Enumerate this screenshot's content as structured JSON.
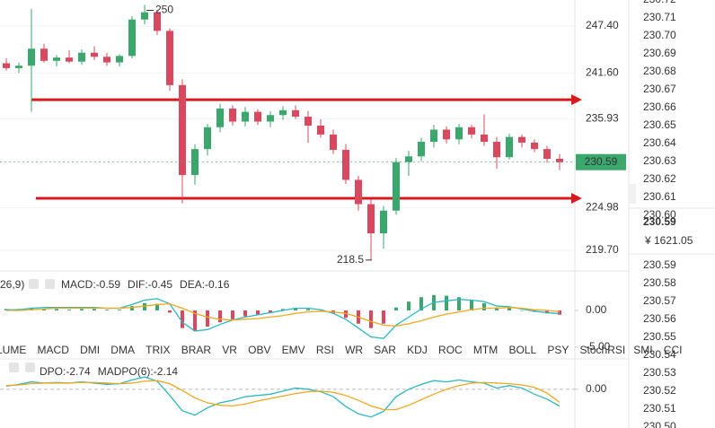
{
  "chart_data": [
    {
      "type": "candlestick",
      "open": [
        242.8,
        242.2,
        242.5,
        244.6,
        243.1,
        243.5,
        243.0,
        244.1,
        243.6,
        242.9,
        243.7,
        248.2,
        249.1,
        246.8,
        240.1,
        229.0,
        232.2,
        234.9,
        237.2,
        235.6,
        236.8,
        235.6,
        236.4,
        237.0,
        236.2,
        235.1,
        234.0,
        232.1,
        228.4,
        225.4,
        221.8,
        224.6,
        230.6,
        231.3,
        233.1,
        234.6,
        233.4,
        234.9,
        234.0,
        233.1,
        231.2,
        233.7,
        233.0,
        232.2,
        231.0
      ],
      "high": [
        243.4,
        242.9,
        249.5,
        245.2,
        243.8,
        244.4,
        244.5,
        244.9,
        244.1,
        243.9,
        248.6,
        250.0,
        249.4,
        247.1,
        240.8,
        232.8,
        235.3,
        237.8,
        237.6,
        237.4,
        237.1,
        236.9,
        237.5,
        237.6,
        236.9,
        235.9,
        234.6,
        232.8,
        228.9,
        226.0,
        225.2,
        231.1,
        232.0,
        233.6,
        235.2,
        235.0,
        235.3,
        235.2,
        236.5,
        233.7,
        234.1,
        234.0,
        233.4,
        232.6,
        231.6
      ],
      "low": [
        241.9,
        241.6,
        236.8,
        242.9,
        242.4,
        242.8,
        242.6,
        243.2,
        242.5,
        242.4,
        243.4,
        247.6,
        246.3,
        239.4,
        225.5,
        227.8,
        231.4,
        234.3,
        235.1,
        235.0,
        235.2,
        234.9,
        235.8,
        235.9,
        233.0,
        233.6,
        231.6,
        227.9,
        224.6,
        218.5,
        219.9,
        224.1,
        228.9,
        230.7,
        232.4,
        232.9,
        232.8,
        233.5,
        232.6,
        229.8,
        230.9,
        232.4,
        231.8,
        230.5,
        229.6
      ],
      "close": [
        242.2,
        242.5,
        244.6,
        243.1,
        243.5,
        243.0,
        244.1,
        243.6,
        242.9,
        243.7,
        248.2,
        249.1,
        246.8,
        240.1,
        229.0,
        232.2,
        234.9,
        237.2,
        235.6,
        236.8,
        235.6,
        236.4,
        237.0,
        236.2,
        235.1,
        234.0,
        232.1,
        228.4,
        225.4,
        221.8,
        224.6,
        230.6,
        231.3,
        233.1,
        234.6,
        233.4,
        234.9,
        234.0,
        233.1,
        231.2,
        233.7,
        233.0,
        232.2,
        231.0,
        230.59
      ],
      "up_color": "#3aa76d",
      "down_color": "#d9485f",
      "ylim": [
        217.37,
        250.61
      ],
      "yticks": [
        {
          "value": 247.4,
          "label": "247.40"
        },
        {
          "value": 241.6,
          "label": "241.60"
        },
        {
          "value": 235.93,
          "label": "235.93"
        },
        {
          "value": 224.98,
          "label": "224.98"
        },
        {
          "value": 219.7,
          "label": "219.70"
        }
      ],
      "hlines": [
        238.3,
        226.12
      ],
      "hline_color": "#d7191c",
      "high_label": 250,
      "low_label": 218.5
    },
    {
      "type": "indicator",
      "title": "26,9)",
      "series": [
        {
          "name": "MACD:-0.59",
          "type": "bar",
          "color": "#e0506a",
          "up_color": "#3aa76d",
          "down_color": "#d9485f",
          "values": [
            0.2,
            0.2,
            0.3,
            0.2,
            0.2,
            0.1,
            0.2,
            0.2,
            0.1,
            0.1,
            0.6,
            1.0,
            0.9,
            -0.3,
            -2.4,
            -2.8,
            -2.2,
            -1.6,
            -1.2,
            -0.8,
            -0.6,
            -0.3,
            0.2,
            0.3,
            0.2,
            0.0,
            -0.4,
            -1.0,
            -1.8,
            -2.4,
            -1.8,
            0.4,
            1.2,
            1.8,
            2.1,
            2.0,
            1.8,
            1.4,
            1.0,
            0.4,
            0.3,
            0.0,
            -0.2,
            -0.4,
            -0.59
          ]
        },
        {
          "name": "DIF:-0.45",
          "type": "line",
          "color": "#2bb8c4",
          "values": [
            0.1,
            0.1,
            0.3,
            0.4,
            0.4,
            0.4,
            0.4,
            0.4,
            0.3,
            0.3,
            0.8,
            1.4,
            1.6,
            0.9,
            -1.6,
            -2.8,
            -2.6,
            -1.9,
            -1.3,
            -0.9,
            -0.6,
            -0.3,
            0.0,
            0.3,
            0.3,
            0.1,
            -0.4,
            -1.2,
            -2.4,
            -3.6,
            -3.8,
            -2.0,
            -0.9,
            0.2,
            1.1,
            1.3,
            1.5,
            1.4,
            1.2,
            0.6,
            0.5,
            0.2,
            -0.1,
            -0.3,
            -0.45
          ]
        },
        {
          "name": "DEA:-0.16",
          "type": "line",
          "color": "#f0a81c",
          "values": [
            0.0,
            0.0,
            0.1,
            0.2,
            0.3,
            0.3,
            0.3,
            0.3,
            0.3,
            0.3,
            0.4,
            0.6,
            0.8,
            0.9,
            0.3,
            -0.4,
            -0.9,
            -1.2,
            -1.3,
            -1.2,
            -1.1,
            -0.9,
            -0.7,
            -0.4,
            -0.2,
            -0.1,
            -0.2,
            -0.4,
            -0.9,
            -1.5,
            -2.0,
            -2.1,
            -1.8,
            -1.4,
            -0.9,
            -0.5,
            -0.2,
            0.1,
            0.3,
            0.3,
            0.4,
            0.3,
            0.1,
            0.0,
            -0.16
          ]
        }
      ],
      "ylim": [
        -6.34,
        4.63
      ],
      "yticks": [
        {
          "value": 0,
          "label": "0.00"
        },
        {
          "value": -5,
          "label": "-5.00"
        }
      ]
    },
    {
      "type": "indicator",
      "series": [
        {
          "name": "DPO:-2.74",
          "type": "line",
          "color": "#2bb8c4",
          "values": [
            0.5,
            0.8,
            1.2,
            1.0,
            1.1,
            1.0,
            1.2,
            1.0,
            0.8,
            0.9,
            1.5,
            2.0,
            1.3,
            -1.0,
            -3.5,
            -4.2,
            -3.0,
            -2.2,
            -1.8,
            -1.2,
            -1.0,
            -0.8,
            -0.3,
            0.2,
            0.0,
            -0.4,
            -1.2,
            -2.8,
            -4.0,
            -4.5,
            -3.6,
            -1.2,
            0.0,
            0.8,
            1.4,
            1.2,
            1.5,
            1.2,
            1.0,
            0.2,
            0.6,
            0.2,
            -0.8,
            -1.6,
            -2.74
          ]
        },
        {
          "name": "MADPO(6):-2.14",
          "type": "line",
          "color": "#f0a81c",
          "values": [
            0.6,
            0.7,
            0.9,
            1.0,
            1.0,
            1.0,
            1.1,
            1.1,
            1.0,
            0.9,
            1.0,
            1.3,
            1.4,
            0.9,
            -0.2,
            -1.4,
            -2.2,
            -2.6,
            -2.7,
            -2.4,
            -1.9,
            -1.5,
            -1.1,
            -0.7,
            -0.4,
            -0.3,
            -0.5,
            -1.0,
            -1.8,
            -2.7,
            -3.3,
            -3.3,
            -2.6,
            -1.7,
            -0.8,
            0.0,
            0.6,
            1.0,
            1.1,
            1.0,
            0.9,
            0.7,
            0.3,
            -0.6,
            -2.14
          ]
        }
      ],
      "ylim": [
        -6,
        4.2
      ],
      "yticks": [
        {
          "value": 0,
          "label": "0.00"
        }
      ]
    }
  ],
  "indicator_tabs": [
    "LUME",
    "MACD",
    "DMI",
    "DMA",
    "TRIX",
    "BRAR",
    "VR",
    "OBV",
    "EMV",
    "RSI",
    "WR",
    "SAR",
    "KDJ",
    "ROC",
    "MTM",
    "BOLL",
    "PSY",
    "StochRSI",
    "SMI",
    "CCI"
  ],
  "order_book": {
    "asks": [
      "230.72",
      "230.71",
      "230.70",
      "230.69",
      "230.68",
      "230.67",
      "230.66",
      "230.65",
      "230.64",
      "230.63",
      "230.62",
      "230.61",
      "230.60"
    ],
    "last": "230.59",
    "turnover": "¥ 1621.05",
    "bids": [
      "230.59",
      "230.58",
      "230.57",
      "230.56",
      "230.55",
      "230.54",
      "230.53",
      "230.52",
      "230.51",
      "230.50"
    ]
  }
}
